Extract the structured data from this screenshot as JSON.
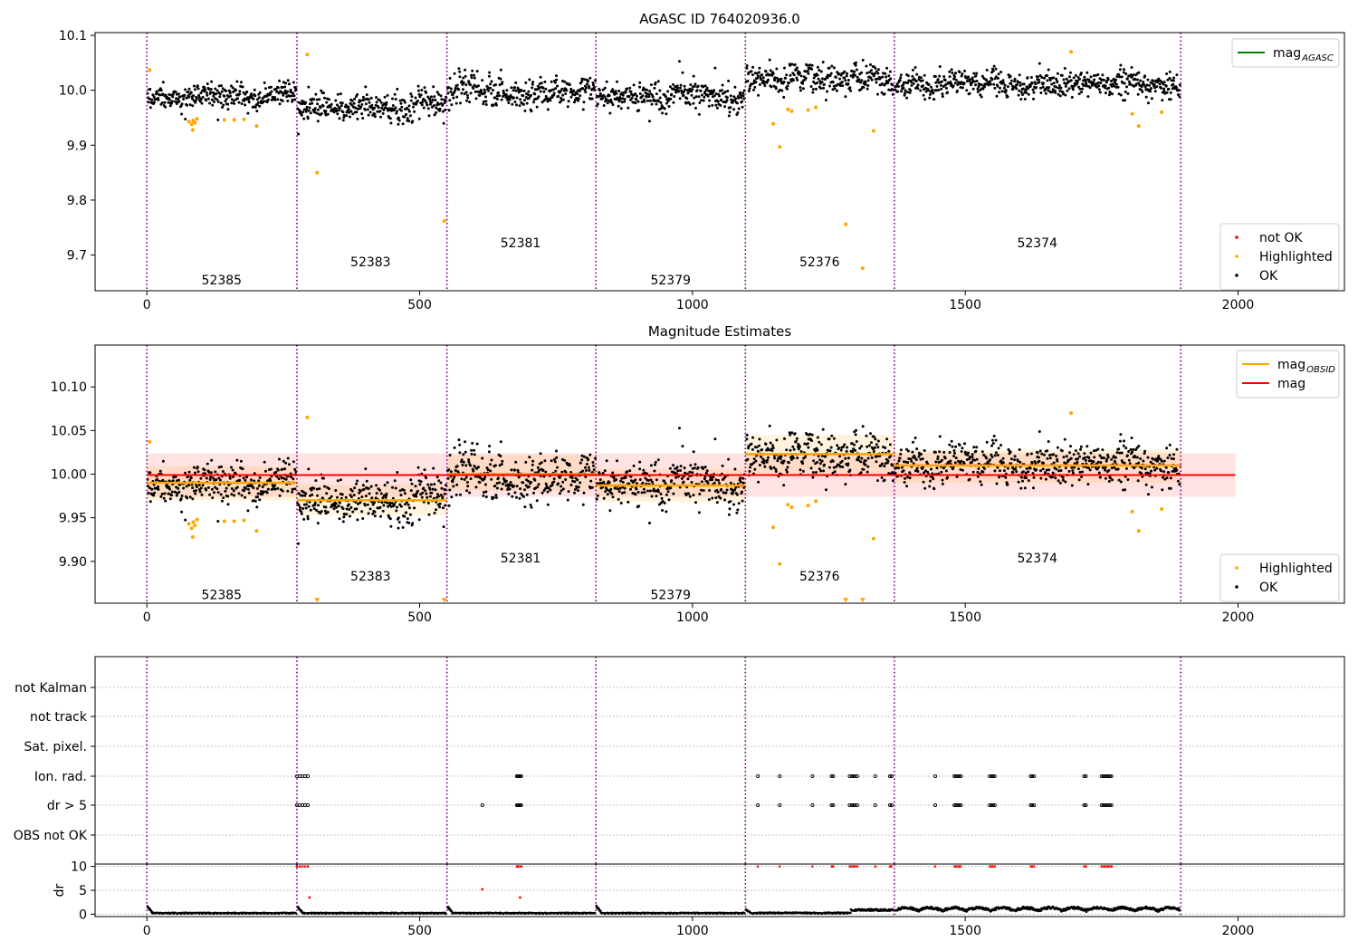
{
  "figure": {
    "title": "AGASC ID 764020936.0"
  },
  "chart_data": [
    {
      "type": "scatter",
      "title": "AGASC ID 764020936.0",
      "xlim": [
        -95,
        2195
      ],
      "ylim": [
        9.635,
        10.105
      ],
      "xticks": [
        0,
        500,
        1000,
        1500,
        2000
      ],
      "yticks": [
        9.7,
        9.8,
        9.9,
        10.0,
        10.1
      ],
      "legends": [
        {
          "placement": "upper right",
          "entries": [
            {
              "label": "mag",
              "sub": "AGASC",
              "kind": "line",
              "color": "#008000"
            }
          ]
        },
        {
          "placement": "lower right",
          "entries": [
            {
              "label": "not OK",
              "kind": "point",
              "color": "#ff0000"
            },
            {
              "label": "Highlighted",
              "kind": "point",
              "color": "#ffa500"
            },
            {
              "label": "OK",
              "kind": "point",
              "color": "#000000"
            }
          ]
        }
      ],
      "obsid_boundaries": [
        0,
        275,
        550,
        823,
        1097,
        1370,
        1895
      ],
      "obsid_labels": [
        {
          "text": "52385",
          "x": 137,
          "y": 9.655
        },
        {
          "text": "52383",
          "x": 410,
          "y": 9.688
        },
        {
          "text": "52381",
          "x": 685,
          "y": 9.722
        },
        {
          "text": "52379",
          "x": 960,
          "y": 9.655
        },
        {
          "text": "52376",
          "x": 1233,
          "y": 9.688
        },
        {
          "text": "52374",
          "x": 1632,
          "y": 9.722
        }
      ],
      "ok_series": {
        "segments": [
          {
            "x": [
              0,
              275
            ],
            "mean": 9.99,
            "scatter": 0.014
          },
          {
            "x": [
              275,
              550
            ],
            "mean": 9.97,
            "scatter": 0.017
          },
          {
            "x": [
              550,
              823
            ],
            "mean": 10.0,
            "scatter": 0.019
          },
          {
            "x": [
              823,
              1097
            ],
            "mean": 9.988,
            "scatter": 0.016
          },
          {
            "x": [
              1097,
              1370
            ],
            "mean": 10.022,
            "scatter": 0.017
          },
          {
            "x": [
              1370,
              1895
            ],
            "mean": 10.01,
            "scatter": 0.015
          }
        ]
      },
      "highlighted": [
        [
          5,
          10.037
        ],
        [
          77,
          9.943
        ],
        [
          82,
          9.938
        ],
        [
          85,
          9.945
        ],
        [
          88,
          9.941
        ],
        [
          92,
          9.948
        ],
        [
          84,
          9.928
        ],
        [
          142,
          9.946
        ],
        [
          160,
          9.946
        ],
        [
          178,
          9.947
        ],
        [
          201,
          9.935
        ],
        [
          294,
          10.065
        ],
        [
          312,
          9.85
        ],
        [
          545,
          9.762
        ],
        [
          1148,
          9.939
        ],
        [
          1160,
          9.897
        ],
        [
          1175,
          9.965
        ],
        [
          1182,
          9.962
        ],
        [
          1212,
          9.964
        ],
        [
          1226,
          9.969
        ],
        [
          1281,
          9.756
        ],
        [
          1312,
          9.676
        ],
        [
          1332,
          9.926
        ],
        [
          1694,
          10.07
        ],
        [
          1806,
          9.957
        ],
        [
          1818,
          9.935
        ],
        [
          1860,
          9.96
        ]
      ]
    },
    {
      "type": "scatter",
      "title": "Magnitude Estimates",
      "xlim": [
        -95,
        2195
      ],
      "ylim": [
        9.852,
        10.148
      ],
      "xticks": [
        0,
        500,
        1000,
        1500,
        2000
      ],
      "yticks": [
        9.9,
        9.95,
        10.0,
        10.05,
        10.1
      ],
      "legends": [
        {
          "placement": "upper right",
          "entries": [
            {
              "label": "mag",
              "sub": "OBSID",
              "kind": "line",
              "color": "#ffa500"
            },
            {
              "label": "mag",
              "kind": "line",
              "color": "#ff0000"
            }
          ]
        },
        {
          "placement": "lower right",
          "entries": [
            {
              "label": "Highlighted",
              "kind": "point",
              "color": "#ffa500"
            },
            {
              "label": "OK",
              "kind": "point",
              "color": "#000000"
            }
          ]
        }
      ],
      "mag": 9.999,
      "mag_band": [
        9.974,
        10.024
      ],
      "mag_band_x": [
        0,
        1995
      ],
      "obsid_mags": [
        {
          "x": [
            0,
            275
          ],
          "mag": 9.99,
          "band": [
            9.97,
            10.009
          ]
        },
        {
          "x": [
            275,
            550
          ],
          "mag": 9.97,
          "band": [
            9.953,
            9.988
          ]
        },
        {
          "x": [
            550,
            823
          ],
          "mag": 10.0,
          "band": [
            9.981,
            10.022
          ]
        },
        {
          "x": [
            823,
            1097
          ],
          "mag": 9.987,
          "band": [
            9.968,
            10.006
          ]
        },
        {
          "x": [
            1097,
            1370
          ],
          "mag": 10.023,
          "band": [
            10.0,
            10.045
          ]
        },
        {
          "x": [
            1370,
            1895
          ],
          "mag": 10.01,
          "band": [
            9.99,
            10.028
          ]
        }
      ],
      "offscale_markers": [
        [
          312,
          9.855
        ],
        [
          545,
          9.855
        ],
        [
          1281,
          9.855
        ],
        [
          1312,
          9.855
        ]
      ],
      "obsid_labels": [
        {
          "text": "52385",
          "x": 137,
          "y": 9.862
        },
        {
          "text": "52383",
          "x": 410,
          "y": 9.883
        },
        {
          "text": "52381",
          "x": 685,
          "y": 9.904
        },
        {
          "text": "52379",
          "x": 960,
          "y": 9.862
        },
        {
          "text": "52376",
          "x": 1233,
          "y": 9.883
        },
        {
          "text": "52374",
          "x": 1632,
          "y": 9.904
        }
      ]
    },
    {
      "type": "scatter",
      "title": "",
      "flags": [
        "not Kalman",
        "not track",
        "Sat. pixel.",
        "Ion. rad.",
        "dr > 5",
        "OBS not OK"
      ],
      "flag_points": {
        "Ion. rad.": [
          275,
          280,
          285,
          290,
          295,
          678,
          680,
          682,
          684,
          686,
          1120,
          1160,
          1220,
          1255,
          1258,
          1288,
          1292,
          1295,
          1298,
          1302,
          1335,
          1362,
          1365,
          1445,
          1480,
          1483,
          1486,
          1489,
          1492,
          1545,
          1548,
          1551,
          1554,
          1620,
          1623,
          1626,
          1718,
          1721,
          1750,
          1753,
          1756,
          1759,
          1762,
          1765,
          1768
        ],
        "dr > 5": [
          275,
          280,
          285,
          290,
          295,
          615,
          678,
          680,
          682,
          684,
          686,
          1120,
          1160,
          1220,
          1255,
          1258,
          1288,
          1292,
          1295,
          1298,
          1302,
          1335,
          1362,
          1365,
          1445,
          1480,
          1483,
          1486,
          1489,
          1492,
          1545,
          1548,
          1551,
          1554,
          1620,
          1623,
          1626,
          1718,
          1721,
          1750,
          1753,
          1756,
          1759,
          1762,
          1765,
          1768
        ]
      },
      "dr_panel": {
        "ylabel": "dr",
        "ylim": [
          -0.5,
          10.5
        ],
        "yticks": [
          0,
          5,
          10
        ],
        "xlim": [
          -95,
          2195
        ],
        "xticks": [
          0,
          500,
          1000,
          1500,
          2000
        ],
        "not_ok_points": [
          [
            275,
            10
          ],
          [
            280,
            10
          ],
          [
            285,
            10
          ],
          [
            290,
            10
          ],
          [
            295,
            10
          ],
          [
            298,
            3.5
          ],
          [
            615,
            5.2
          ],
          [
            678,
            10
          ],
          [
            680,
            10
          ],
          [
            682,
            10
          ],
          [
            684,
            3.5
          ],
          [
            686,
            10
          ],
          [
            1120,
            10
          ],
          [
            1160,
            10
          ],
          [
            1220,
            10
          ],
          [
            1255,
            10
          ],
          [
            1258,
            10
          ],
          [
            1288,
            10
          ],
          [
            1292,
            10
          ],
          [
            1295,
            10
          ],
          [
            1298,
            10
          ],
          [
            1302,
            10
          ],
          [
            1335,
            10
          ],
          [
            1362,
            10
          ],
          [
            1365,
            10
          ],
          [
            1445,
            10
          ],
          [
            1480,
            10
          ],
          [
            1483,
            10
          ],
          [
            1486,
            10
          ],
          [
            1489,
            10
          ],
          [
            1492,
            10
          ],
          [
            1545,
            10
          ],
          [
            1548,
            10
          ],
          [
            1551,
            10
          ],
          [
            1554,
            10
          ],
          [
            1620,
            10
          ],
          [
            1623,
            10
          ],
          [
            1626,
            10
          ],
          [
            1718,
            10
          ],
          [
            1721,
            10
          ],
          [
            1750,
            10
          ],
          [
            1753,
            10
          ],
          [
            1756,
            10
          ],
          [
            1759,
            10
          ],
          [
            1762,
            10
          ],
          [
            1765,
            10
          ],
          [
            1768,
            10
          ]
        ]
      },
      "obsid_boundaries": [
        0,
        275,
        550,
        823,
        1097,
        1370,
        1895
      ]
    }
  ]
}
